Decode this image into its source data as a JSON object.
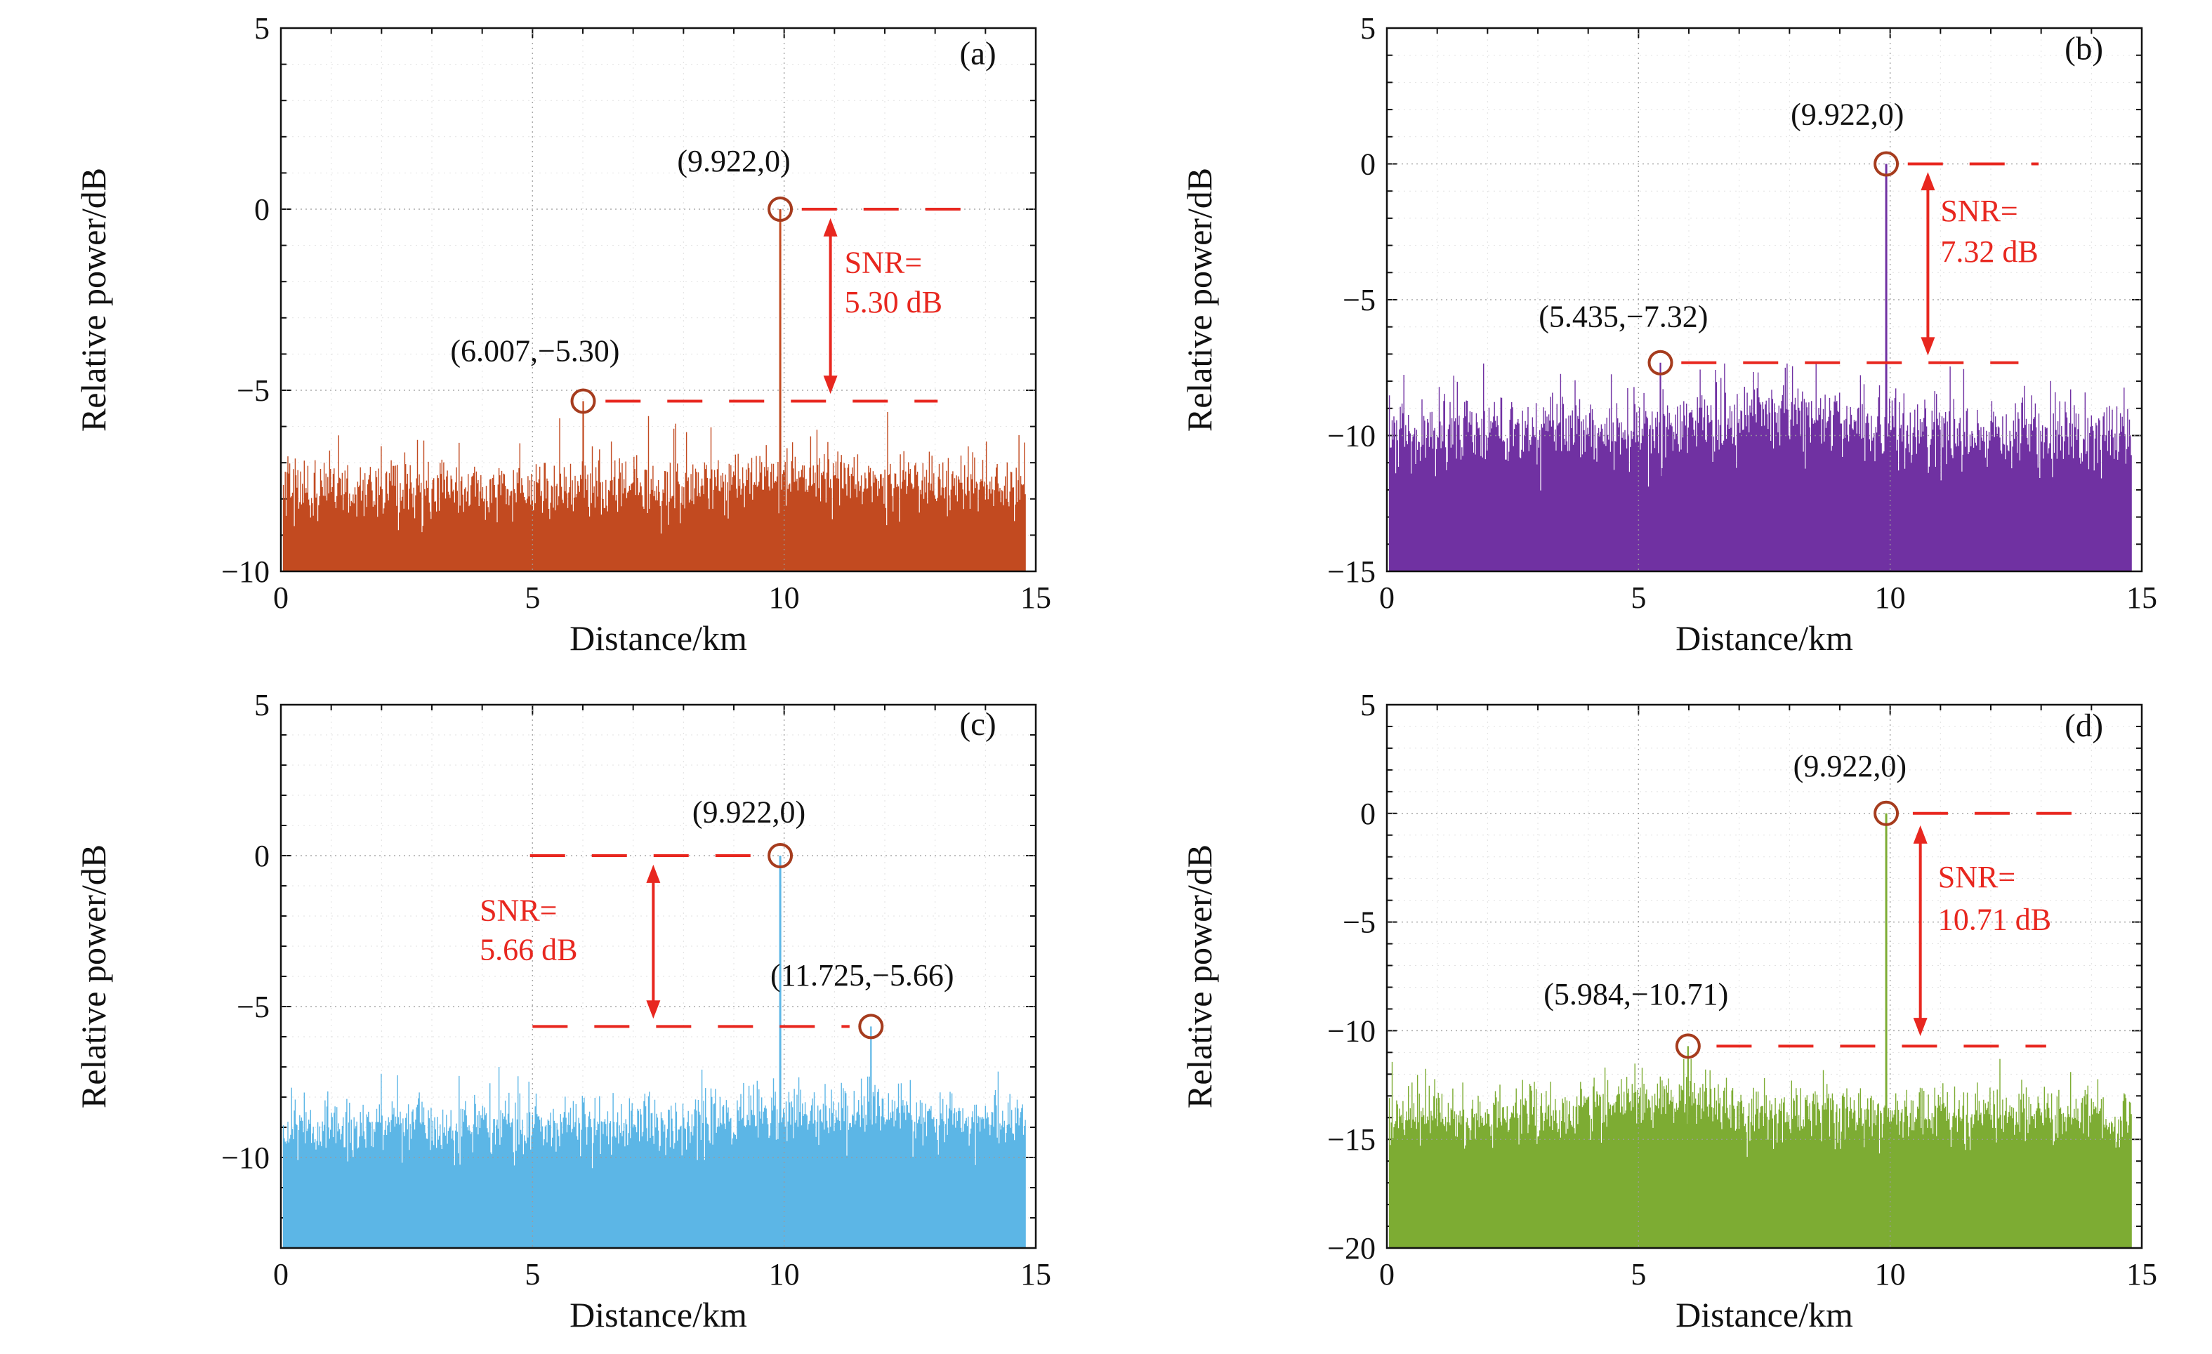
{
  "figure": {
    "xlabel": "Distance/km",
    "ylabel": "Relative power/dB",
    "background": "#ffffff",
    "annotation_red": "#e8271f"
  },
  "chart_data": [
    {
      "type": "line",
      "panel_label": "(a)",
      "xlabel": "Distance/km",
      "ylabel": "Relative power/dB",
      "xlim": [
        0,
        15
      ],
      "ylim": [
        -10,
        5
      ],
      "xticks": [
        0,
        5,
        10,
        15
      ],
      "xtick_labels": [
        "0",
        "5",
        "10",
        "15"
      ],
      "yticks": [
        -10,
        -5,
        0,
        5
      ],
      "ytick_labels": [
        "−10",
        "−5",
        "0",
        "5"
      ],
      "trace_color": "#c24a20",
      "marker_color": "#a63c1e",
      "annotation_color": "#e8271f",
      "peak": {
        "x": 9.922,
        "y": 0,
        "label": "(9.922,0)"
      },
      "ref_point": {
        "x": 6.007,
        "y": -5.3,
        "label": "(6.007,−5.30)"
      },
      "snr_db": 5.3,
      "snr_text": [
        "SNR=",
        "5.30 dB"
      ],
      "noise": {
        "seed": 101,
        "mean": -7.7,
        "std": 0.45,
        "spike_prob": 0.06,
        "spike_amp": 1.6,
        "cap": -5.6,
        "bump": {
          "c": 10.4,
          "w": 2.0,
          "h": 0.35
        },
        "x_start": 0.05,
        "x_end": 14.8
      },
      "layout": {
        "peak_label_pos": [
          9.0,
          1.05
        ],
        "ref_label_pos": [
          5.05,
          -4.2
        ],
        "panel_pos": [
          13.85,
          4.0
        ],
        "dash_top": [
          10.35,
          13.55
        ],
        "dash_bottom": [
          6.45,
          13.05
        ],
        "arrow": {
          "x": 10.92,
          "y1": -0.25,
          "y2": -5.1
        },
        "snr_pos": {
          "x": 11.2,
          "y1": -1.75,
          "y2": -2.85,
          "anchor": "start"
        }
      }
    },
    {
      "type": "line",
      "panel_label": "(b)",
      "xlabel": "Distance/km",
      "ylabel": "Relative power/dB",
      "xlim": [
        0,
        15
      ],
      "ylim": [
        -15,
        5
      ],
      "xticks": [
        0,
        5,
        10,
        15
      ],
      "xtick_labels": [
        "0",
        "5",
        "10",
        "15"
      ],
      "yticks": [
        -15,
        -10,
        -5,
        0,
        5
      ],
      "ytick_labels": [
        "−15",
        "−10",
        "−5",
        "0",
        "5"
      ],
      "trace_color": "#7031a2",
      "marker_color": "#a63c1e",
      "annotation_color": "#e8271f",
      "peak": {
        "x": 9.922,
        "y": 0,
        "label": "(9.922,0)"
      },
      "ref_point": {
        "x": 5.435,
        "y": -7.32,
        "label": "(5.435,−7.32)"
      },
      "snr_db": 7.32,
      "snr_text": [
        "SNR=",
        "7.32 dB"
      ],
      "noise": {
        "seed": 202,
        "mean": -9.9,
        "std": 0.7,
        "spike_prob": 0.06,
        "spike_amp": 1.6,
        "cap": -7.35,
        "bump": {
          "c": 7.8,
          "w": 1.8,
          "h": 0.8
        },
        "x_start": 0.05,
        "x_end": 14.8
      },
      "layout": {
        "peak_label_pos": [
          9.15,
          1.45
        ],
        "ref_label_pos": [
          4.7,
          -6.0
        ],
        "panel_pos": [
          13.85,
          3.85
        ],
        "dash_top": [
          10.35,
          12.95
        ],
        "dash_bottom": [
          5.85,
          12.55
        ],
        "arrow": {
          "x": 10.75,
          "y1": -0.3,
          "y2": -7.05
        },
        "snr_pos": {
          "x": 11.0,
          "y1": -2.1,
          "y2": -3.6,
          "anchor": "start"
        }
      }
    },
    {
      "type": "line",
      "panel_label": "(c)",
      "xlabel": "Distance/km",
      "ylabel": "Relative power/dB",
      "xlim": [
        0,
        15
      ],
      "ylim": [
        -13,
        5
      ],
      "xticks": [
        0,
        5,
        10,
        15
      ],
      "xtick_labels": [
        "0",
        "5",
        "10",
        "15"
      ],
      "yticks": [
        -10,
        -5,
        0,
        5
      ],
      "ytick_labels": [
        "−10",
        "−5",
        "0",
        "5"
      ],
      "trace_color": "#5cb6e6",
      "marker_color": "#a63c1e",
      "annotation_color": "#e8271f",
      "peak": {
        "x": 9.922,
        "y": 0,
        "label": "(9.922,0)"
      },
      "ref_point": {
        "x": 11.725,
        "y": -5.66,
        "label": "(11.725,−5.66)"
      },
      "snr_db": 5.66,
      "snr_text": [
        "SNR=",
        "5.66 dB"
      ],
      "noise": {
        "seed": 303,
        "mean": -9.0,
        "std": 0.5,
        "spike_prob": 0.06,
        "spike_amp": 1.4,
        "cap": -7.0,
        "bump": {
          "c": 11.2,
          "w": 2.2,
          "h": 0.6
        },
        "x_start": 0.05,
        "x_end": 14.8
      },
      "layout": {
        "peak_label_pos": [
          9.3,
          1.1
        ],
        "ref_label_pos": [
          11.55,
          -4.3
        ],
        "panel_pos": [
          13.85,
          4.0
        ],
        "dash_top": [
          4.95,
          9.6
        ],
        "dash_bottom": [
          5.0,
          11.3
        ],
        "arrow": {
          "x": 7.4,
          "y1": -0.3,
          "y2": -5.4
        },
        "snr_pos": {
          "x": 3.95,
          "y1": -2.15,
          "y2": -3.45,
          "anchor": "start"
        }
      }
    },
    {
      "type": "line",
      "panel_label": "(d)",
      "xlabel": "Distance/km",
      "ylabel": "Relative power/dB",
      "xlim": [
        0,
        15
      ],
      "ylim": [
        -20,
        5
      ],
      "xticks": [
        0,
        5,
        10,
        15
      ],
      "xtick_labels": [
        "0",
        "5",
        "10",
        "15"
      ],
      "yticks": [
        -20,
        -15,
        -10,
        -5,
        0,
        5
      ],
      "ytick_labels": [
        "−20",
        "−15",
        "−10",
        "−5",
        "0",
        "5"
      ],
      "trace_color": "#7dac33",
      "marker_color": "#a63c1e",
      "annotation_color": "#e8271f",
      "peak": {
        "x": 9.922,
        "y": 0,
        "label": "(9.922,0)"
      },
      "ref_point": {
        "x": 5.984,
        "y": -10.71,
        "label": "(5.984,−10.71)"
      },
      "snr_db": 10.71,
      "snr_text": [
        "SNR=",
        "10.71 dB"
      ],
      "noise": {
        "seed": 404,
        "mean": -13.9,
        "std": 0.7,
        "spike_prob": 0.06,
        "spike_amp": 1.7,
        "cap": -11.3,
        "bump": {
          "c": 5.3,
          "w": 1.6,
          "h": 0.7
        },
        "x_start": 0.05,
        "x_end": 14.8
      },
      "layout": {
        "peak_label_pos": [
          9.2,
          1.7
        ],
        "ref_label_pos": [
          4.95,
          -8.8
        ],
        "panel_pos": [
          13.85,
          3.55
        ],
        "dash_top": [
          10.45,
          13.85
        ],
        "dash_bottom": [
          6.55,
          13.1
        ],
        "arrow": {
          "x": 10.6,
          "y1": -0.55,
          "y2": -10.25
        },
        "snr_pos": {
          "x": 10.95,
          "y1": -3.4,
          "y2": -5.35,
          "anchor": "start"
        }
      }
    }
  ]
}
